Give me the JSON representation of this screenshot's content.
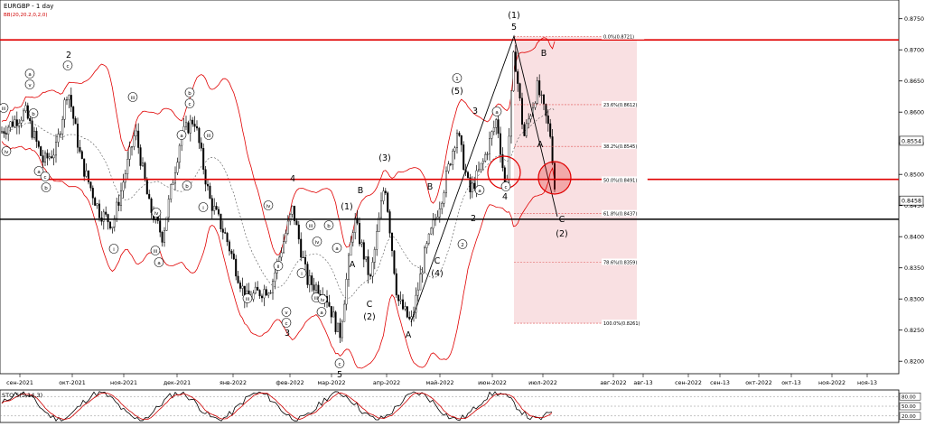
{
  "window": {
    "title": "EURGBP - 1 day",
    "indicator_main": "BB(20,20.2,0,2,0)",
    "indicator_sub": "STO 5(5,14,3)"
  },
  "chart_data": {
    "type": "candlestick",
    "symbol": "EURGBP",
    "timeframe": "1 day",
    "ylim": [
      0.818,
      0.878
    ],
    "y_ticks": [
      0.82,
      0.825,
      0.83,
      0.835,
      0.84,
      0.845,
      0.85,
      0.855,
      0.86,
      0.865,
      0.87,
      0.875
    ],
    "price_labels": [
      {
        "label": "0.8554",
        "value": 0.8554
      },
      {
        "label": "0.8458",
        "value": 0.8458
      }
    ],
    "x_labels": [
      "сен-2021",
      "окт-2021",
      "ноя-2021",
      "дек-2021",
      "янв-2022",
      "фев-2022",
      "мар-2022",
      "апр-2022",
      "май-2022",
      "июн-2022",
      "июл-2022",
      "авг-2022",
      "авг-13",
      "сен-2022",
      "сен-13",
      "окт-2022",
      "окт-13",
      "ноя-2022",
      "ноя-13"
    ],
    "horizontal_lines": [
      {
        "value": 0.8716,
        "color": "#e00000"
      },
      {
        "value": 0.8492,
        "color": "#e00000"
      },
      {
        "value": 0.8428,
        "color": "#000000"
      }
    ],
    "fibonacci_levels": [
      {
        "label": "0.0%(0.8721)",
        "value": 0.8721
      },
      {
        "label": "23.6%(0.8612)",
        "value": 0.8612
      },
      {
        "label": "38.2%(0.8545)",
        "value": 0.8545
      },
      {
        "label": "50.0%(0.8491)",
        "value": 0.8491
      },
      {
        "label": "61.8%(0.8437)",
        "value": 0.8437
      },
      {
        "label": "78.6%(0.8359)",
        "value": 0.8359
      },
      {
        "label": "100.0%(0.8261)",
        "value": 0.8261
      }
    ],
    "fib_zone": {
      "color": "#f4c6cb"
    },
    "wave_labels": [
      {
        "text": "(1)",
        "x": 569,
        "y": 20
      },
      {
        "text": "5",
        "x": 569,
        "y": 33
      },
      {
        "text": "2",
        "x": 76,
        "y": 64
      },
      {
        "text": "B",
        "x": 602,
        "y": 62
      },
      {
        "text": "(5)",
        "x": 506,
        "y": 104
      },
      {
        "text": "3",
        "x": 526,
        "y": 126
      },
      {
        "text": "(3)",
        "x": 426,
        "y": 178
      },
      {
        "text": "4",
        "x": 324,
        "y": 201
      },
      {
        "text": "B",
        "x": 399,
        "y": 214
      },
      {
        "text": "B",
        "x": 476,
        "y": 210
      },
      {
        "text": "(1)",
        "x": 384,
        "y": 232
      },
      {
        "text": "4",
        "x": 559,
        "y": 221
      },
      {
        "text": "2",
        "x": 524,
        "y": 245
      },
      {
        "text": "C",
        "x": 622,
        "y": 246
      },
      {
        "text": "(2)",
        "x": 622,
        "y": 262
      },
      {
        "text": "A",
        "x": 598,
        "y": 163
      },
      {
        "text": "A",
        "x": 390,
        "y": 296
      },
      {
        "text": "C",
        "x": 484,
        "y": 292
      },
      {
        "text": "(4)",
        "x": 484,
        "y": 306
      },
      {
        "text": "C",
        "x": 409,
        "y": 340
      },
      {
        "text": "(2)",
        "x": 409,
        "y": 354
      },
      {
        "text": "3",
        "x": 318,
        "y": 372
      },
      {
        "text": "A",
        "x": 452,
        "y": 374
      },
      {
        "text": "5",
        "x": 376,
        "y": 418
      }
    ],
    "circled_labels": [
      {
        "text": "1",
        "x": 506,
        "y": 89
      },
      {
        "text": "a",
        "x": 33,
        "y": 84
      },
      {
        "text": "c",
        "x": 75,
        "y": 75
      },
      {
        "text": "b",
        "x": 210,
        "y": 105
      },
      {
        "text": "c",
        "x": 210,
        "y": 117
      },
      {
        "text": "iii",
        "x": 147,
        "y": 110
      },
      {
        "text": "a",
        "x": 550,
        "y": 126
      },
      {
        "text": "v",
        "x": 33,
        "y": 96
      },
      {
        "text": "iii",
        "x": 4,
        "y": 122
      },
      {
        "text": "b",
        "x": 37,
        "y": 128
      },
      {
        "text": "iv",
        "x": 7,
        "y": 170
      },
      {
        "text": "a",
        "x": 43,
        "y": 192
      },
      {
        "text": "c",
        "x": 50,
        "y": 198
      },
      {
        "text": "b",
        "x": 51,
        "y": 210
      },
      {
        "text": "a",
        "x": 201,
        "y": 152
      },
      {
        "text": "iii",
        "x": 231,
        "y": 152
      },
      {
        "text": "b",
        "x": 207,
        "y": 208
      },
      {
        "text": "i",
        "x": 225,
        "y": 232
      },
      {
        "text": "b",
        "x": 364,
        "y": 252
      },
      {
        "text": "iii",
        "x": 344,
        "y": 252
      },
      {
        "text": "iv",
        "x": 351,
        "y": 270
      },
      {
        "text": "a",
        "x": 373,
        "y": 277
      },
      {
        "text": "iv",
        "x": 297,
        "y": 230
      },
      {
        "text": "c",
        "x": 560,
        "y": 209
      },
      {
        "text": "a",
        "x": 531,
        "y": 213
      },
      {
        "text": "2",
        "x": 512,
        "y": 273
      },
      {
        "text": "iv",
        "x": 173,
        "y": 238
      },
      {
        "text": "iii",
        "x": 172,
        "y": 280
      },
      {
        "text": "a",
        "x": 176,
        "y": 293
      },
      {
        "text": "i",
        "x": 126,
        "y": 278
      },
      {
        "text": "i",
        "x": 334,
        "y": 305
      },
      {
        "text": "ii",
        "x": 308,
        "y": 297
      },
      {
        "text": "iii",
        "x": 274,
        "y": 333
      },
      {
        "text": "iii",
        "x": 350,
        "y": 332
      },
      {
        "text": "iv",
        "x": 357,
        "y": 334
      },
      {
        "text": "a",
        "x": 356,
        "y": 348
      },
      {
        "text": "v",
        "x": 317,
        "y": 348
      },
      {
        "text": "c",
        "x": 317,
        "y": 360
      },
      {
        "text": "c",
        "x": 376,
        "y": 405
      }
    ],
    "sto_ylim": [
      0,
      100
    ],
    "sto_ticks": [
      {
        "label": "80.00",
        "value": 80
      },
      {
        "label": "50.00",
        "value": 50
      },
      {
        "label": "20.00",
        "value": 20
      }
    ]
  }
}
